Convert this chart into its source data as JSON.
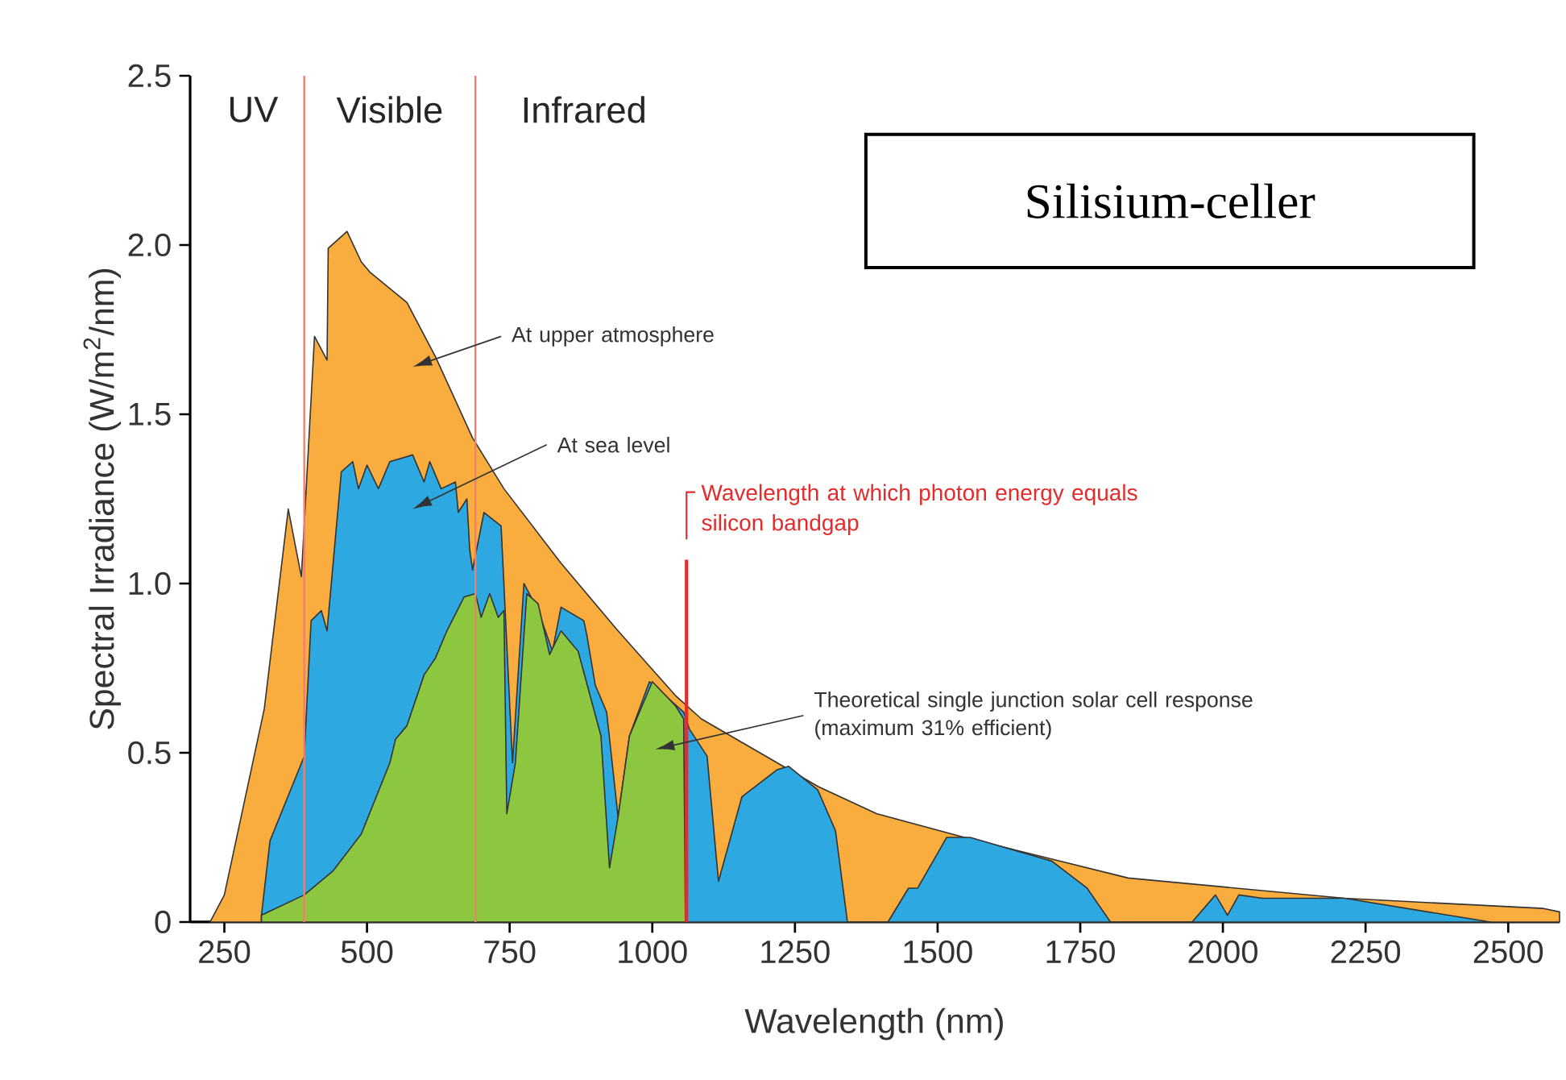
{
  "chart_data": {
    "type": "area",
    "title": "Silisium-celler",
    "xlabel": "Wavelength (nm)",
    "ylabel": "Spectral Irradiance (W/m$^{2}$/nm)",
    "xlim": [
      190,
      2590
    ],
    "ylim": [
      0,
      2.5
    ],
    "xticks": [
      250,
      500,
      750,
      1000,
      1250,
      1500,
      1750,
      2000,
      2250,
      2500
    ],
    "yticks": [
      0,
      {
        "value": 0.5,
        "label": "0.5"
      },
      {
        "value": 1,
        "label": "1.0"
      },
      {
        "value": 1.5,
        "label": "1.5"
      },
      {
        "value": 2,
        "label": "2.0"
      },
      {
        "value": 2.5,
        "label": "2.5"
      }
    ],
    "series": [
      {
        "color": "#f9ad3f",
        "x": [
          225,
          250,
          320,
          362,
          385,
          408,
          430,
          432,
          465,
          490,
          505,
          570,
          620,
          685,
          740,
          840,
          940,
          1040,
          1086,
          1291,
          1393,
          1547,
          1834,
          2213,
          2562,
          2590
        ],
        "values": [
          0,
          0.08,
          0.63,
          1.22,
          1.02,
          1.73,
          1.66,
          1.99,
          2.04,
          1.95,
          1.92,
          1.83,
          1.67,
          1.43,
          1.28,
          1.06,
          0.86,
          0.67,
          0.6,
          0.4,
          0.32,
          0.25,
          0.13,
          0.07,
          0.04,
          0.03
        ]
      },
      {
        "color": "#2ea8e0",
        "x": [
          315,
          330,
          390,
          402,
          420,
          430,
          455,
          475,
          485,
          500,
          520,
          540,
          580,
          600,
          610,
          630,
          655,
          660,
          675,
          680,
          685,
          705,
          735,
          755,
          775,
          800,
          825,
          840,
          880,
          885,
          900,
          920,
          940,
          960,
          995,
          1055,
          1065,
          1096,
          1116,
          1157,
          1219,
          1239,
          1290,
          1321,
          1342,
          1413,
          1449,
          1465,
          1516,
          1557,
          1700,
          1762,
          1803,
          1946,
          1987,
          2008,
          2028,
          2069,
          2213,
          2469
        ],
        "values": [
          0.02,
          0.24,
          0.49,
          0.89,
          0.92,
          0.86,
          1.33,
          1.36,
          1.28,
          1.35,
          1.28,
          1.36,
          1.38,
          1.3,
          1.36,
          1.28,
          1.3,
          1.21,
          1.25,
          1.1,
          1.04,
          1.21,
          1.17,
          0.47,
          1.0,
          0.92,
          0.8,
          0.93,
          0.89,
          0.85,
          0.7,
          0.62,
          0.31,
          0.55,
          0.71,
          0.62,
          0.57,
          0.49,
          0.12,
          0.37,
          0.45,
          0.46,
          0.39,
          0.27,
          0,
          0,
          0.1,
          0.1,
          0.25,
          0.25,
          0.18,
          0.1,
          0,
          0,
          0.08,
          0.02,
          0.08,
          0.07,
          0.07,
          0
        ]
      },
      {
        "color": "#8dc63f",
        "x": [
          315,
          390,
          440,
          490,
          540,
          550,
          570,
          600,
          620,
          640,
          670,
          690,
          700,
          715,
          730,
          740,
          745,
          760,
          780,
          800,
          820,
          840,
          870,
          910,
          925,
          940,
          960,
          1000,
          1040,
          1055,
          1058
        ],
        "values": [
          0.02,
          0.08,
          0.15,
          0.26,
          0.47,
          0.54,
          0.58,
          0.73,
          0.78,
          0.86,
          0.96,
          0.97,
          0.9,
          0.97,
          0.9,
          0.92,
          0.32,
          0.47,
          0.97,
          0.94,
          0.79,
          0.86,
          0.8,
          0.55,
          0.16,
          0.31,
          0.55,
          0.71,
          0.64,
          0.6,
          0
        ]
      }
    ],
    "ref_lines": [
      {
        "axis": "x",
        "value": 390,
        "color": "#ef7f6f"
      },
      {
        "axis": "x",
        "value": 690,
        "color": "#ef7f6f"
      },
      {
        "axis": "x",
        "value": 1060,
        "color": "#e32c2c",
        "label": "Wavelength at which photon energy equals silicon bandgap"
      }
    ],
    "annotations": [
      "UV",
      "Visible",
      "Infrared",
      "At upper atmosphere",
      "At sea level",
      "Theoretical single junction solar cell response (maximum 31% efficient)"
    ]
  }
}
